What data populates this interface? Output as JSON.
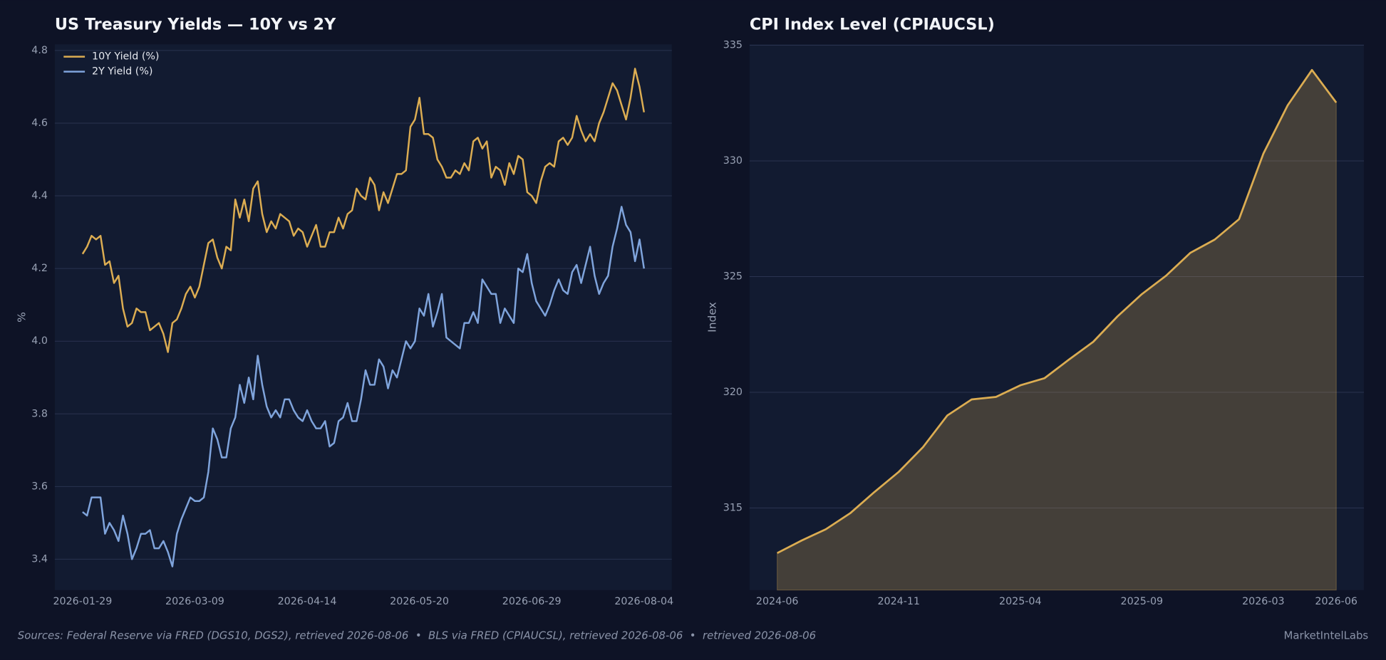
{
  "chart_data": [
    {
      "type": "line",
      "title": "US Treasury Yields — 10Y vs 2Y",
      "y_label": "%",
      "categories": [
        "2026-01-29",
        null,
        null,
        null,
        null,
        null,
        null,
        null,
        null,
        null,
        null,
        null,
        null,
        null,
        null,
        null,
        null,
        null,
        null,
        null,
        null,
        null,
        null,
        null,
        null,
        "2026-03-09",
        null,
        null,
        null,
        null,
        null,
        null,
        null,
        null,
        null,
        null,
        null,
        null,
        null,
        null,
        null,
        null,
        null,
        null,
        null,
        null,
        null,
        null,
        null,
        null,
        "2026-04-14",
        null,
        null,
        null,
        null,
        null,
        null,
        null,
        null,
        null,
        null,
        null,
        null,
        null,
        null,
        null,
        null,
        null,
        null,
        null,
        null,
        null,
        null,
        null,
        null,
        "2026-05-20",
        null,
        null,
        null,
        null,
        null,
        null,
        null,
        null,
        null,
        null,
        null,
        null,
        null,
        null,
        null,
        null,
        null,
        null,
        null,
        null,
        null,
        null,
        null,
        null,
        "2026-06-29",
        null,
        null,
        null,
        null,
        null,
        null,
        null,
        null,
        null,
        null,
        null,
        null,
        null,
        null,
        null,
        null,
        null,
        null,
        null,
        null,
        null,
        null,
        null,
        null,
        "2026-08-04"
      ],
      "series": [
        {
          "name": "10Y Yield (%)",
          "color": "#dcad52",
          "values": [
            4.24,
            4.26,
            4.29,
            4.28,
            4.29,
            4.21,
            4.22,
            4.16,
            4.18,
            4.09,
            4.04,
            4.05,
            4.09,
            4.08,
            4.08,
            4.03,
            4.04,
            4.05,
            4.02,
            3.97,
            4.05,
            4.06,
            4.09,
            4.13,
            4.15,
            4.12,
            4.15,
            4.21,
            4.27,
            4.28,
            4.23,
            4.2,
            4.26,
            4.25,
            4.39,
            4.34,
            4.39,
            4.33,
            4.42,
            4.44,
            4.35,
            4.3,
            4.33,
            4.31,
            4.35,
            4.34,
            4.33,
            4.29,
            4.31,
            4.3,
            4.26,
            4.29,
            4.32,
            4.26,
            4.26,
            4.3,
            4.3,
            4.34,
            4.31,
            4.35,
            4.36,
            4.42,
            4.4,
            4.39,
            4.45,
            4.43,
            4.36,
            4.41,
            4.38,
            4.42,
            4.46,
            4.46,
            4.47,
            4.59,
            4.61,
            4.67,
            4.57,
            4.57,
            4.56,
            4.5,
            4.48,
            4.45,
            4.45,
            4.47,
            4.46,
            4.49,
            4.47,
            4.55,
            4.56,
            4.53,
            4.55,
            4.45,
            4.48,
            4.47,
            4.43,
            4.49,
            4.46,
            4.51,
            4.5,
            4.41,
            4.4,
            4.38,
            4.44,
            4.48,
            4.49,
            4.48,
            4.55,
            4.56,
            4.54,
            4.56,
            4.62,
            4.58,
            4.55,
            4.57,
            4.55,
            4.6,
            4.63,
            4.67,
            4.71,
            4.69,
            4.65,
            4.61,
            4.67,
            4.75,
            4.7,
            4.63
          ]
        },
        {
          "name": "2Y Yield (%)",
          "color": "#7fa4dc",
          "values": [
            3.53,
            3.52,
            3.57,
            3.57,
            3.57,
            3.47,
            3.5,
            3.48,
            3.45,
            3.52,
            3.47,
            3.4,
            3.43,
            3.47,
            3.47,
            3.48,
            3.43,
            3.43,
            3.45,
            3.42,
            3.38,
            3.47,
            3.51,
            3.54,
            3.57,
            3.56,
            3.56,
            3.57,
            3.64,
            3.76,
            3.73,
            3.68,
            3.68,
            3.76,
            3.79,
            3.88,
            3.83,
            3.9,
            3.84,
            3.96,
            3.88,
            3.82,
            3.79,
            3.81,
            3.79,
            3.84,
            3.84,
            3.81,
            3.79,
            3.78,
            3.81,
            3.78,
            3.76,
            3.76,
            3.78,
            3.71,
            3.72,
            3.78,
            3.79,
            3.83,
            3.78,
            3.78,
            3.84,
            3.92,
            3.88,
            3.88,
            3.95,
            3.93,
            3.87,
            3.92,
            3.9,
            3.95,
            4.0,
            3.98,
            4.0,
            4.09,
            4.07,
            4.13,
            4.04,
            4.08,
            4.13,
            4.01,
            4.0,
            3.99,
            3.98,
            4.05,
            4.05,
            4.08,
            4.05,
            4.17,
            4.15,
            4.13,
            4.13,
            4.05,
            4.09,
            4.07,
            4.05,
            4.2,
            4.19,
            4.24,
            4.16,
            4.11,
            4.09,
            4.07,
            4.1,
            4.14,
            4.17,
            4.14,
            4.13,
            4.19,
            4.21,
            4.16,
            4.21,
            4.26,
            4.18,
            4.13,
            4.16,
            4.18,
            4.26,
            4.31,
            4.37,
            4.32,
            4.3,
            4.22,
            4.28,
            4.2
          ]
        }
      ],
      "ylim": [
        3.315,
        4.817
      ],
      "yticks": [
        3.4,
        3.6,
        3.8,
        {
          "value": 4,
          "label": "4.0"
        },
        4.2,
        4.4,
        4.6,
        4.8
      ],
      "grid": true,
      "legend": "upper left"
    },
    {
      "type": "area",
      "title": "CPI Index Level (CPIAUCSL)",
      "y_label": "Index",
      "categories": [
        "2024-06",
        null,
        null,
        null,
        null,
        "2024-11",
        null,
        null,
        null,
        null,
        "2025-04",
        null,
        null,
        null,
        null,
        "2025-09",
        null,
        null,
        null,
        null,
        "2026-03",
        null,
        null,
        "2026-06"
      ],
      "values": [
        313.05,
        313.59,
        314.08,
        314.77,
        315.69,
        316.56,
        317.63,
        319.0,
        319.69,
        319.8,
        320.3,
        320.61,
        321.41,
        322.18,
        323.28,
        324.24,
        325.04,
        326.03,
        326.6,
        327.48,
        330.31,
        332.4,
        333.93,
        332.52
      ],
      "color": "#dcad52",
      "ylim": [
        311.45,
        335.04
      ],
      "yticks": [
        315,
        320,
        325,
        330,
        335
      ],
      "grid": true
    }
  ],
  "source_note": "Sources: Federal Reserve via FRED (DGS10, DGS2), retrieved 2026-08-06  •  BLS via FRED (CPIAUCSL), retrieved 2026-08-06  •  retrieved 2026-08-06",
  "brand": "MarketIntelLabs"
}
